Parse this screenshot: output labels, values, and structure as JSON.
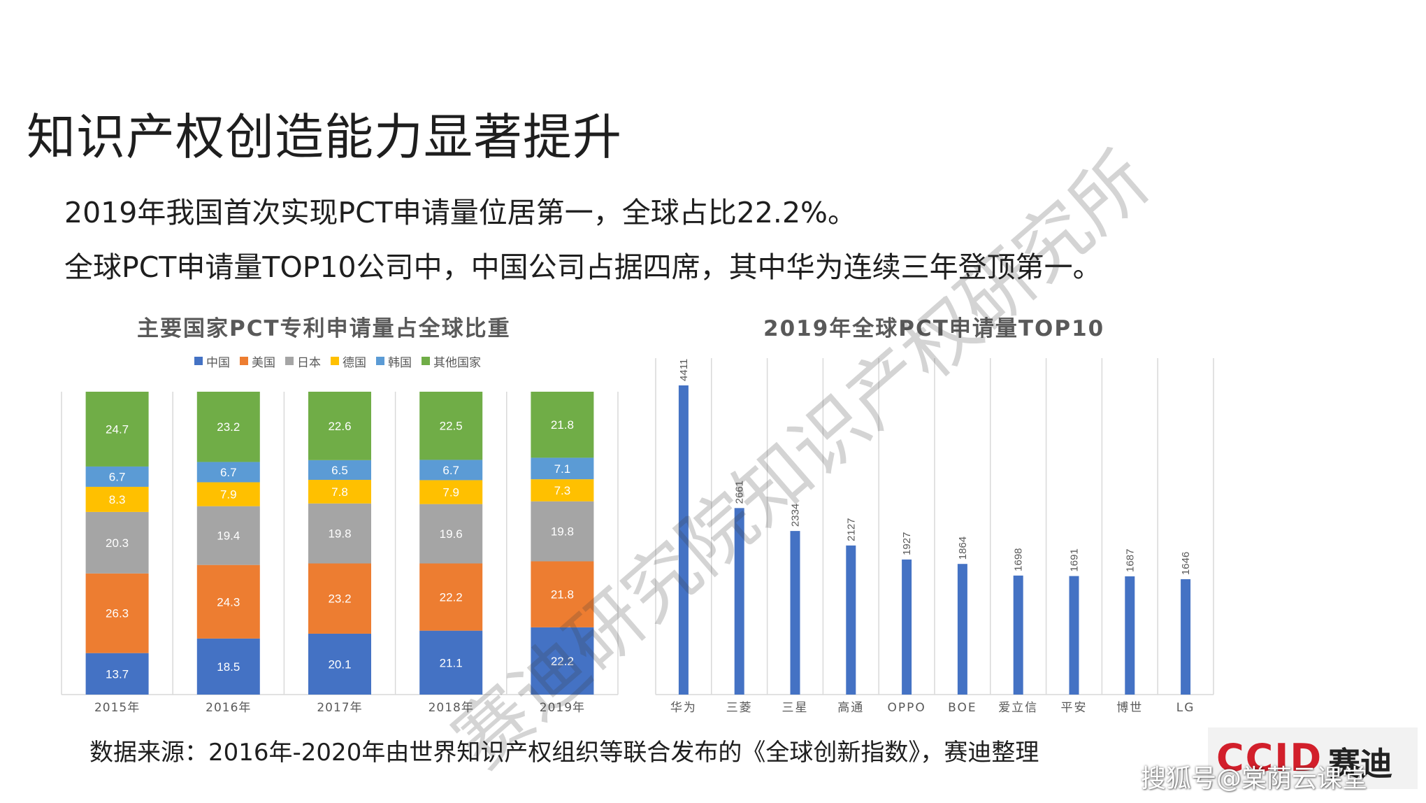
{
  "page": {
    "title": "知识产权创造能力显著提升",
    "lead_lines": [
      "2019年我国首次实现PCT申请量位居第一，全球占比22.2%。",
      "全球PCT申请量TOP10公司中，中国公司占据四席，其中华为连续三年登顶第一。"
    ],
    "source": "数据来源：2016年-2020年由世界知识产权组织等联合发布的《全球创新指数》，赛迪整理",
    "watermark": "赛迪研究院知识产权研究所",
    "logo_text": "CCID",
    "logo_cn": "赛迪",
    "credit": "搜狐号@棠荫云课堂"
  },
  "colors": {
    "china": "#4472c4",
    "usa": "#ed7d31",
    "japan": "#a5a5a5",
    "germany": "#ffc000",
    "korea": "#5b9bd5",
    "others": "#70ad47",
    "bar_blue": "#4472c4",
    "grid": "#d9d9d9",
    "text_gray": "#595959",
    "accent_red": "#d21f2b"
  },
  "chart_data": [
    {
      "type": "bar",
      "stacked": true,
      "title": "主要国家PCT专利申请量占全球比重",
      "categories": [
        "2015年",
        "2016年",
        "2017年",
        "2018年",
        "2019年"
      ],
      "series": [
        {
          "name": "中国",
          "color_key": "china",
          "values": [
            13.7,
            18.5,
            20.1,
            21.1,
            22.2
          ]
        },
        {
          "name": "美国",
          "color_key": "usa",
          "values": [
            26.3,
            24.3,
            23.2,
            22.2,
            21.8
          ]
        },
        {
          "name": "日本",
          "color_key": "japan",
          "values": [
            20.3,
            19.4,
            19.8,
            19.6,
            19.8
          ]
        },
        {
          "name": "德国",
          "color_key": "germany",
          "values": [
            8.3,
            7.9,
            7.8,
            7.9,
            7.3
          ]
        },
        {
          "name": "韩国",
          "color_key": "korea",
          "values": [
            6.7,
            6.7,
            6.5,
            6.7,
            7.1
          ]
        },
        {
          "name": "其他国家",
          "color_key": "others",
          "values": [
            24.7,
            23.2,
            22.6,
            22.5,
            21.8
          ]
        }
      ],
      "legend_position": "top",
      "grid": true
    },
    {
      "type": "bar",
      "title": "2019年全球PCT申请量TOP10",
      "categories": [
        "华为",
        "三菱",
        "三星",
        "高通",
        "OPPO",
        "BOE",
        "爱立信",
        "平安",
        "博世",
        "LG"
      ],
      "values": [
        4411,
        2661,
        2334,
        2127,
        1927,
        1864,
        1698,
        1691,
        1687,
        1646
      ],
      "ylim": [
        0,
        4800
      ],
      "data_labels": true,
      "grid": true
    }
  ]
}
